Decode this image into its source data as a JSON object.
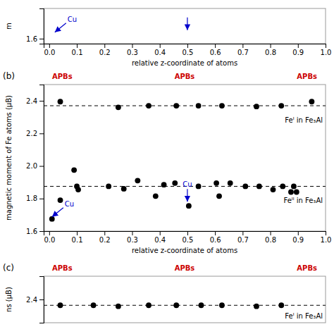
{
  "chart_data": [
    {
      "type": "scatter",
      "xlabel": "relative z-coordinate of atoms",
      "ylabel": "m",
      "xlim": [
        -0.02,
        1.0
      ],
      "ylim": [
        1.58,
        1.72
      ],
      "xticks": [
        {
          "value": 0,
          "label": "0.0"
        },
        0.1,
        0.2,
        0.3,
        0.4,
        0.5,
        0.6,
        0.7,
        0.8,
        0.9,
        {
          "value": 1,
          "label": "1.0"
        }
      ],
      "yticks": [
        1.6
      ],
      "annotations": [
        {
          "text": "Cu",
          "x": 0.01,
          "y": 1.617,
          "color": "#0000cc"
        },
        {
          "x": 0.5,
          "y": 1.617,
          "color": "#0000cc"
        }
      ]
    },
    {
      "type": "scatter",
      "title": "(b)",
      "header_labels": [
        "APBs",
        "APBs",
        "APBs"
      ],
      "header_color": "#cc0000",
      "xlabel": "relative z-coordinate of atoms",
      "ylabel": "magnetic moment of Fe atoms (μB)",
      "xlim": [
        -0.02,
        1.0
      ],
      "ylim": [
        1.6,
        2.5
      ],
      "xticks": [
        {
          "value": 0,
          "label": "0.0"
        },
        0.1,
        0.2,
        0.3,
        0.4,
        0.5,
        0.6,
        0.7,
        0.8,
        0.9,
        {
          "value": 1,
          "label": "1.0"
        }
      ],
      "yticks": [
        1.6,
        1.8,
        {
          "value": 2,
          "label": "2.0"
        },
        2.2,
        2.4
      ],
      "series": [
        {
          "color": "black",
          "marker": "circle",
          "x": [
            0.04,
            0.25,
            0.36,
            0.46,
            0.54,
            0.625,
            0.75,
            0.84,
            0.95
          ],
          "values": [
            2.395,
            2.36,
            2.37,
            2.37,
            2.37,
            2.37,
            2.365,
            2.37,
            2.395
          ]
        },
        {
          "color": "black",
          "marker": "circle",
          "x": [
            0.01,
            0.04,
            0.09,
            0.1,
            0.105,
            0.215,
            0.27,
            0.32,
            0.385,
            0.415,
            0.455,
            0.505,
            0.54,
            0.605,
            0.615,
            0.655,
            0.71,
            0.76,
            0.81,
            0.845,
            0.875,
            0.885,
            0.895
          ],
          "values": [
            1.675,
            1.79,
            1.975,
            1.875,
            1.855,
            1.875,
            1.86,
            1.91,
            1.815,
            1.885,
            1.895,
            1.755,
            1.875,
            1.895,
            1.815,
            1.895,
            1.875,
            1.875,
            1.855,
            1.875,
            1.84,
            1.875,
            1.84
          ]
        }
      ],
      "ref_lines": [
        {
          "y": 2.37,
          "label": "Feᴵ in Fe₃Al",
          "line_style": "dashed"
        },
        {
          "y": 1.875,
          "label": "Feᴵᴵ in Fe₃Al",
          "line_style": "dashed"
        }
      ],
      "annotations": [
        {
          "text": "Cu",
          "x": 0.0,
          "y": 1.675,
          "color": "#0000cc"
        },
        {
          "text": "Cu",
          "x": 0.5,
          "y": 1.755,
          "color": "#0000cc"
        }
      ]
    },
    {
      "type": "scatter",
      "title": "(c)",
      "header_labels": [
        "APBs",
        "APBs",
        "APBs"
      ],
      "header_color": "#cc0000",
      "ylabel": "ns (μB)",
      "xlim": [
        -0.02,
        1.0
      ],
      "ylim": [
        2.28,
        2.52
      ],
      "yticks": [
        2.4
      ],
      "tick_labels": "y",
      "series": [
        {
          "color": "black",
          "marker": "circle",
          "x": [
            0.04,
            0.16,
            0.25,
            0.36,
            0.46,
            0.55,
            0.625,
            0.75,
            0.84
          ],
          "values": [
            2.37,
            2.37,
            2.365,
            2.37,
            2.37,
            2.37,
            2.37,
            2.365,
            2.37
          ]
        }
      ],
      "ref_lines": [
        {
          "y": 2.37,
          "label": "Feᴵ in Fe₃Al",
          "line_style": "dashed"
        }
      ]
    }
  ]
}
